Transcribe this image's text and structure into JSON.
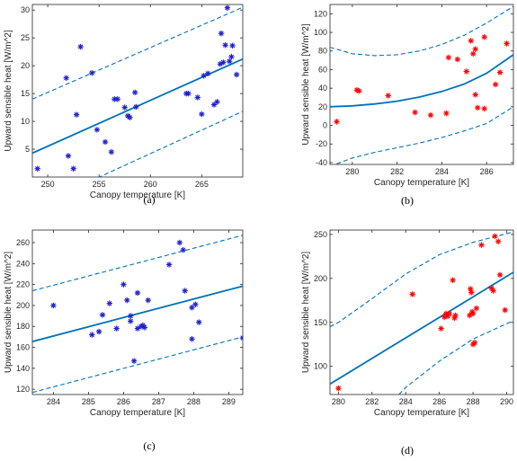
{
  "chart_data": [
    {
      "type": "scatter",
      "caption": "(a)",
      "xlabel": "Canopy temperature [K]",
      "ylabel": "Upward sensible heat [W/m^2]",
      "xlim": [
        248.5,
        269
      ],
      "ylim": [
        0,
        31
      ],
      "xticks": [
        250,
        255,
        260,
        265
      ],
      "yticks": [
        5,
        10,
        15,
        20,
        25,
        30
      ],
      "marker": "*",
      "marker_color": "#1f1fd0",
      "line_color": "#0072bd",
      "points": [
        [
          249,
          1.5
        ],
        [
          251.8,
          17.8
        ],
        [
          252,
          3.8
        ],
        [
          252.5,
          1.5
        ],
        [
          252.8,
          11.2
        ],
        [
          253.2,
          23.4
        ],
        [
          254.3,
          18.7
        ],
        [
          254.8,
          8.5
        ],
        [
          255.6,
          6.3
        ],
        [
          256.2,
          4.5
        ],
        [
          256.5,
          14
        ],
        [
          256.8,
          14
        ],
        [
          257.5,
          12.5
        ],
        [
          257.8,
          11
        ],
        [
          258,
          10.7
        ],
        [
          258.5,
          15.2
        ],
        [
          258.6,
          12.6
        ],
        [
          263.5,
          15
        ],
        [
          263.7,
          15
        ],
        [
          264.6,
          14.3
        ],
        [
          265,
          11.3
        ],
        [
          265.2,
          18.2
        ],
        [
          265.6,
          18.6
        ],
        [
          266.2,
          13
        ],
        [
          266.5,
          13.5
        ],
        [
          266.8,
          20.3
        ],
        [
          266.9,
          25.8
        ],
        [
          267.1,
          20.6
        ],
        [
          267.3,
          23.7
        ],
        [
          267.5,
          30.4
        ],
        [
          267.7,
          20.8
        ],
        [
          267.9,
          21.6
        ],
        [
          268,
          23.6
        ],
        [
          268.4,
          18.4
        ]
      ],
      "fit": [
        [
          248.5,
          4.3
        ],
        [
          269,
          21.2
        ]
      ],
      "upper": [
        [
          248.5,
          14
        ],
        [
          269,
          30.5
        ]
      ],
      "lower": [
        [
          248.5,
          -5.5
        ],
        [
          269,
          11.8
        ]
      ]
    },
    {
      "type": "scatter",
      "caption": "(b)",
      "xlabel": "Canopy temperature [K]",
      "ylabel": "Upward sensible heat [W/m^2]",
      "xlim": [
        279,
        287.2
      ],
      "ylim": [
        -42,
        130
      ],
      "xticks": [
        280,
        282,
        284,
        286
      ],
      "yticks": [
        -40,
        -20,
        0,
        20,
        40,
        60,
        80,
        100,
        120
      ],
      "marker": "*",
      "marker_color": "#ff0000",
      "line_color": "#0072bd",
      "points": [
        [
          279.3,
          4
        ],
        [
          280.2,
          38
        ],
        [
          280.3,
          37
        ],
        [
          281.6,
          32
        ],
        [
          282.8,
          14
        ],
        [
          283.5,
          11
        ],
        [
          284.2,
          13
        ],
        [
          284.3,
          73
        ],
        [
          284.7,
          71
        ],
        [
          285.1,
          58
        ],
        [
          285.3,
          91
        ],
        [
          285.4,
          77
        ],
        [
          285.5,
          33
        ],
        [
          285.5,
          82
        ],
        [
          285.6,
          19
        ],
        [
          285.9,
          95
        ],
        [
          285.9,
          18
        ],
        [
          286.4,
          44
        ],
        [
          286.6,
          57
        ],
        [
          286.9,
          88
        ]
      ],
      "fit": [
        [
          279,
          20
        ],
        [
          280,
          21
        ],
        [
          281,
          23
        ],
        [
          282,
          26
        ],
        [
          283,
          30.5
        ],
        [
          284,
          36.5
        ],
        [
          285,
          44.5
        ],
        [
          286,
          56
        ],
        [
          287.2,
          76
        ]
      ],
      "upper": [
        [
          279,
          84
        ],
        [
          280,
          77
        ],
        [
          281,
          75
        ],
        [
          282,
          76
        ],
        [
          283,
          80
        ],
        [
          284,
          87
        ],
        [
          285,
          97
        ],
        [
          286,
          110
        ],
        [
          287.2,
          128
        ]
      ],
      "lower": [
        [
          279,
          -44
        ],
        [
          280,
          -35
        ],
        [
          281,
          -29
        ],
        [
          282,
          -24
        ],
        [
          283,
          -19
        ],
        [
          284,
          -13
        ],
        [
          285,
          -6
        ],
        [
          286,
          2
        ],
        [
          287.2,
          20
        ]
      ]
    },
    {
      "type": "scatter",
      "caption": "(c)",
      "xlabel": "Canopy temperature [K]",
      "ylabel": "Upward sensible heat [W/m^2]",
      "xlim": [
        283.4,
        289.4
      ],
      "ylim": [
        115,
        272
      ],
      "xticks": [
        284,
        285,
        286,
        287,
        288,
        289
      ],
      "yticks": [
        120,
        140,
        160,
        180,
        200,
        220,
        240,
        260
      ],
      "marker": "*",
      "marker_color": "#1f1fd0",
      "line_color": "#0072bd",
      "points": [
        [
          284,
          200
        ],
        [
          285.1,
          172
        ],
        [
          285.3,
          175
        ],
        [
          285.4,
          191
        ],
        [
          285.6,
          202
        ],
        [
          285.8,
          178
        ],
        [
          286,
          220
        ],
        [
          286.1,
          205
        ],
        [
          286.2,
          190
        ],
        [
          286.2,
          185
        ],
        [
          286.3,
          147
        ],
        [
          286.4,
          178
        ],
        [
          286.4,
          212
        ],
        [
          286.5,
          180
        ],
        [
          286.55,
          181
        ],
        [
          286.6,
          179
        ],
        [
          286.7,
          205
        ],
        [
          287.3,
          239
        ],
        [
          287.6,
          260
        ],
        [
          287.7,
          253
        ],
        [
          287.75,
          214
        ],
        [
          287.95,
          168
        ],
        [
          287.95,
          198
        ],
        [
          288.05,
          201
        ],
        [
          288.15,
          184
        ],
        [
          289.4,
          169
        ]
      ],
      "fit": [
        [
          283.4,
          165.5
        ],
        [
          289.4,
          218.5
        ]
      ],
      "upper": [
        [
          283.4,
          214
        ],
        [
          289.4,
          267
        ]
      ],
      "lower": [
        [
          283.4,
          117
        ],
        [
          289.4,
          170
        ]
      ]
    },
    {
      "type": "scatter",
      "caption": "(d)",
      "xlabel": "Canopy temperature [K]",
      "ylabel": "Upward sensible heat [W/m^2]",
      "xlim": [
        279.5,
        290.4
      ],
      "ylim": [
        68,
        255
      ],
      "xticks": [
        280,
        282,
        284,
        286,
        288,
        290
      ],
      "yticks": [
        100,
        150,
        200,
        250
      ],
      "marker": "*",
      "marker_color": "#ff0000",
      "line_color": "#0072bd",
      "points": [
        [
          280,
          75
        ],
        [
          284.4,
          182
        ],
        [
          286.1,
          143
        ],
        [
          286.3,
          156
        ],
        [
          286.4,
          160
        ],
        [
          286.5,
          157
        ],
        [
          286.6,
          160
        ],
        [
          286.8,
          198
        ],
        [
          286.9,
          155
        ],
        [
          286.95,
          158
        ],
        [
          287.8,
          158
        ],
        [
          287.85,
          188
        ],
        [
          287.9,
          184
        ],
        [
          287.95,
          162
        ],
        [
          288,
          160
        ],
        [
          288,
          125
        ],
        [
          288.1,
          127
        ],
        [
          288.2,
          166
        ],
        [
          288.5,
          238
        ],
        [
          289.1,
          189
        ],
        [
          289.2,
          186
        ],
        [
          289.3,
          248
        ],
        [
          289.5,
          242
        ],
        [
          289.6,
          204
        ],
        [
          289.9,
          164
        ]
      ],
      "fit": [
        [
          279.5,
          80
        ],
        [
          290.4,
          207
        ]
      ],
      "upper": [
        [
          279.5,
          145
        ],
        [
          280,
          150
        ],
        [
          282,
          177
        ],
        [
          284,
          205
        ],
        [
          286,
          227
        ],
        [
          288,
          241
        ],
        [
          290.4,
          253
        ]
      ],
      "lower": [
        [
          283.6,
          68
        ],
        [
          284,
          76
        ],
        [
          286,
          106
        ],
        [
          288,
          131
        ],
        [
          290.4,
          152
        ]
      ]
    }
  ]
}
